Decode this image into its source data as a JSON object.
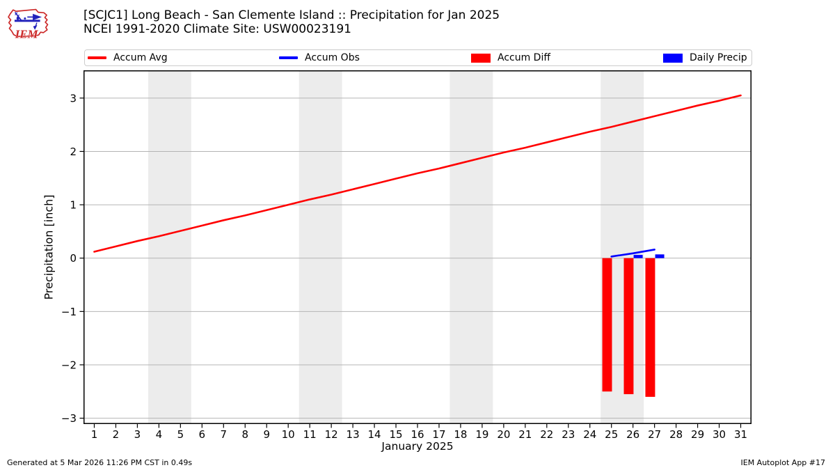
{
  "header": {
    "title_line1": "[SCJC1] Long Beach - San Clemente Island :: Precipitation for Jan 2025",
    "title_line2": "NCEI 1991-2020 Climate Site: USW00023191",
    "logo_text": "IEM"
  },
  "legend": {
    "items": [
      {
        "label": "Accum Avg",
        "swatch": "line",
        "color": "#ff0000"
      },
      {
        "label": "Accum Obs",
        "swatch": "line",
        "color": "#0000ff"
      },
      {
        "label": "Accum Diff",
        "swatch": "patch",
        "color": "#ff0000"
      },
      {
        "label": "Daily Precip",
        "swatch": "patch",
        "color": "#0000ff"
      }
    ]
  },
  "colors": {
    "red": "#ff0000",
    "blue": "#0000ff",
    "weekend_band": "#ececec",
    "gridline": "#b4b4b4",
    "axis": "#000000",
    "legend_border": "#cccccc",
    "logo_red": "#cc2a2a",
    "logo_blue": "#2222bb"
  },
  "chart_data": {
    "type": "mixed-line-bar",
    "xlabel": "January 2025",
    "ylabel": "Precipitation [inch]",
    "xlim": [
      0.5,
      31.5
    ],
    "ylim": [
      -3.11,
      3.52
    ],
    "grid": "horizontal",
    "legend_position": "top",
    "xticks": [
      1,
      2,
      3,
      4,
      5,
      6,
      7,
      8,
      9,
      10,
      11,
      12,
      13,
      14,
      15,
      16,
      17,
      18,
      19,
      20,
      21,
      22,
      23,
      24,
      25,
      26,
      27,
      28,
      29,
      30,
      31
    ],
    "yticks": [
      -3,
      -2,
      -1,
      0,
      1,
      2,
      3
    ],
    "weekend_shading_day_ranges": [
      [
        3.5,
        5.5
      ],
      [
        10.5,
        12.5
      ],
      [
        17.5,
        19.5
      ],
      [
        24.5,
        26.5
      ]
    ],
    "series": [
      {
        "name": "Accum Avg",
        "type": "line",
        "color": "#ff0000",
        "x": [
          1,
          2,
          3,
          4,
          5,
          6,
          7,
          8,
          9,
          10,
          11,
          12,
          13,
          14,
          15,
          16,
          17,
          18,
          19,
          20,
          21,
          22,
          23,
          24,
          25,
          26,
          27,
          28,
          29,
          30,
          31
        ],
        "y": [
          0.12,
          0.22,
          0.32,
          0.41,
          0.51,
          0.61,
          0.71,
          0.8,
          0.9,
          1.0,
          1.1,
          1.19,
          1.29,
          1.39,
          1.49,
          1.59,
          1.68,
          1.78,
          1.88,
          1.98,
          2.07,
          2.17,
          2.27,
          2.37,
          2.46,
          2.56,
          2.66,
          2.76,
          2.86,
          2.95,
          3.05
        ]
      },
      {
        "name": "Accum Obs",
        "type": "line",
        "color": "#0000ff",
        "x": [
          25,
          26,
          27
        ],
        "y": [
          0.03,
          0.09,
          0.16
        ]
      },
      {
        "name": "Accum Diff",
        "type": "bar",
        "color": "#ff0000",
        "bar_offset": -0.2,
        "bar_width": 0.45,
        "x": [
          25,
          26,
          27
        ],
        "y": [
          -2.5,
          -2.55,
          -2.6
        ]
      },
      {
        "name": "Daily Precip",
        "type": "bar",
        "color": "#0000ff",
        "bar_offset": 0.24,
        "bar_width": 0.42,
        "x": [
          26,
          27
        ],
        "y": [
          0.06,
          0.07
        ]
      }
    ]
  },
  "footer": {
    "left": "Generated at 5 Mar 2026 11:26 PM CST in 0.49s",
    "right": "IEM Autoplot App #17"
  }
}
